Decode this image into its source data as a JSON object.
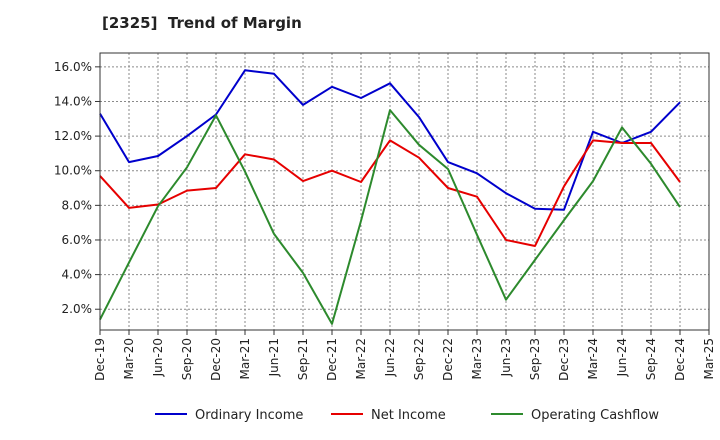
{
  "chart_data": {
    "type": "line",
    "title": "[2325]  Trend of Margin",
    "xlabel": "",
    "ylabel": "",
    "categories": [
      "Dec-19",
      "Mar-20",
      "Jun-20",
      "Sep-20",
      "Dec-20",
      "Mar-21",
      "Jun-21",
      "Sep-21",
      "Dec-21",
      "Mar-22",
      "Jun-22",
      "Sep-22",
      "Dec-22",
      "Mar-23",
      "Jun-23",
      "Sep-23",
      "Dec-23",
      "Mar-24",
      "Jun-24",
      "Sep-24",
      "Dec-24",
      "Mar-25"
    ],
    "ylim": [
      0.8,
      16.8
    ],
    "yticks": [
      2.0,
      4.0,
      6.0,
      8.0,
      10.0,
      12.0,
      14.0,
      16.0
    ],
    "y_tick_format": "%",
    "grid": true,
    "legend_position": "bottom",
    "series": [
      {
        "name": "Ordinary Income",
        "color": "#0000cc",
        "values": [
          13.3,
          10.5,
          10.85,
          12.0,
          13.25,
          15.8,
          15.6,
          13.8,
          14.85,
          14.2,
          15.05,
          13.1,
          10.5,
          9.85,
          8.7,
          7.8,
          7.75,
          12.25,
          11.6,
          12.25,
          13.95,
          null
        ]
      },
      {
        "name": "Net Income",
        "color": "#e60000",
        "values": [
          9.7,
          7.85,
          8.05,
          8.85,
          9.0,
          10.95,
          10.65,
          9.4,
          10.0,
          9.35,
          11.75,
          10.75,
          9.0,
          8.5,
          6.0,
          5.65,
          9.1,
          11.75,
          11.6,
          11.6,
          9.35,
          null
        ]
      },
      {
        "name": "Operating Cashflow",
        "color": "#2d8a2d",
        "values": [
          1.4,
          4.7,
          7.95,
          10.2,
          13.2,
          9.95,
          6.35,
          4.1,
          1.15,
          7.1,
          13.5,
          11.5,
          10.1,
          6.3,
          2.55,
          4.85,
          7.15,
          9.4,
          12.5,
          10.4,
          7.9,
          null
        ]
      }
    ]
  }
}
